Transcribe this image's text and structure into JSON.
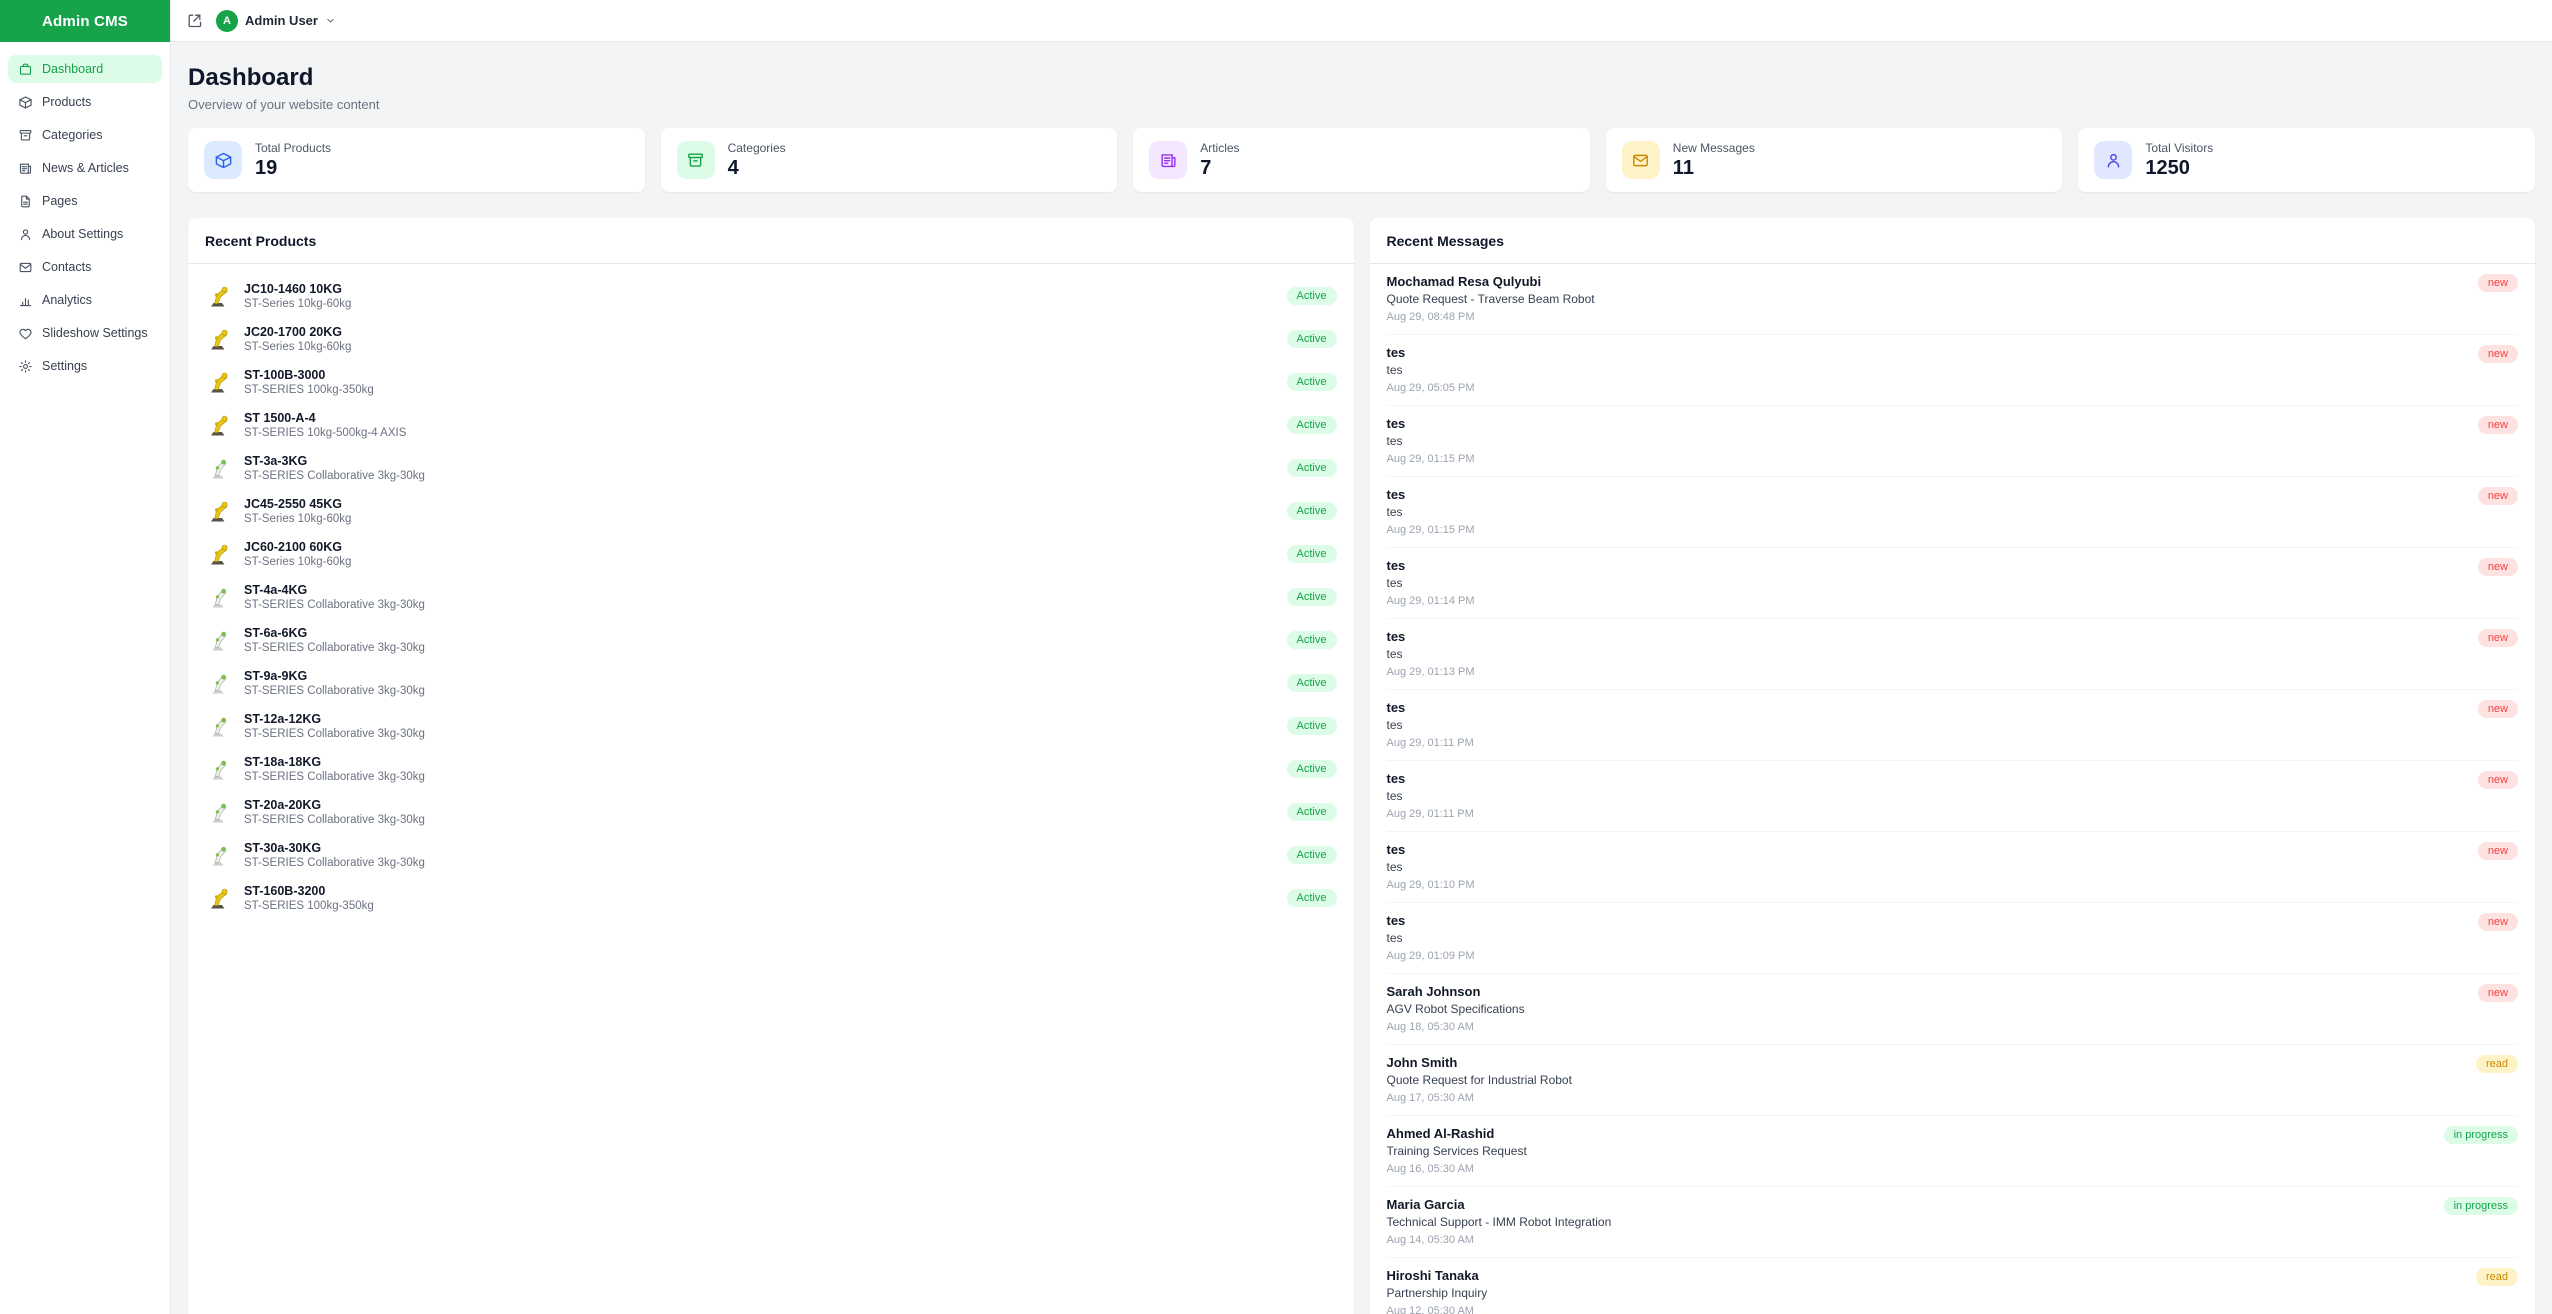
{
  "app": {
    "title": "Admin CMS"
  },
  "topbar": {
    "external_link_icon": "external-link-icon",
    "avatar_initial": "A",
    "user_name": "Admin User",
    "chevron_icon": "chevron-down-icon"
  },
  "sidebar": {
    "items": [
      {
        "label": "Dashboard",
        "icon": "briefcase-icon",
        "active": true
      },
      {
        "label": "Products",
        "icon": "cube-icon",
        "active": false
      },
      {
        "label": "Categories",
        "icon": "archive-icon",
        "active": false
      },
      {
        "label": "News & Articles",
        "icon": "newspaper-icon",
        "active": false
      },
      {
        "label": "Pages",
        "icon": "document-icon",
        "active": false
      },
      {
        "label": "About Settings",
        "icon": "user-icon",
        "active": false
      },
      {
        "label": "Contacts",
        "icon": "mail-icon",
        "active": false
      },
      {
        "label": "Analytics",
        "icon": "chart-icon",
        "active": false
      },
      {
        "label": "Slideshow Settings",
        "icon": "heart-icon",
        "active": false
      },
      {
        "label": "Settings",
        "icon": "gear-icon",
        "active": false
      }
    ]
  },
  "page": {
    "title": "Dashboard",
    "subtitle": "Overview of your website content"
  },
  "stats": {
    "items": [
      {
        "label": "Total Products",
        "value": "19",
        "icon": "cube-icon",
        "icon_color": "#2563eb",
        "icon_bg": "#dbeafe"
      },
      {
        "label": "Categories",
        "value": "4",
        "icon": "archive-icon",
        "icon_color": "#16a34a",
        "icon_bg": "#dcfce7"
      },
      {
        "label": "Articles",
        "value": "7",
        "icon": "newspaper-icon",
        "icon_color": "#9333ea",
        "icon_bg": "#f3e8ff"
      },
      {
        "label": "New Messages",
        "value": "11",
        "icon": "mail-icon",
        "icon_color": "#ca8a04",
        "icon_bg": "#fef3c7"
      },
      {
        "label": "Total Visitors",
        "value": "1250",
        "icon": "user-icon",
        "icon_color": "#4f46e5",
        "icon_bg": "#e0e7ff"
      }
    ]
  },
  "recent_products": {
    "title": "Recent Products",
    "items": [
      {
        "name": "JC10-1460 10KG",
        "series": "ST-Series 10kg-60kg",
        "status": "Active",
        "thumb": "yellow-robot-arm"
      },
      {
        "name": "JC20-1700 20KG",
        "series": "ST-Series 10kg-60kg",
        "status": "Active",
        "thumb": "yellow-robot-arm"
      },
      {
        "name": "ST-100B-3000",
        "series": "ST-SERIES 100kg-350kg",
        "status": "Active",
        "thumb": "yellow-robot-arm"
      },
      {
        "name": "ST 1500-A-4",
        "series": "ST-SERIES 10kg-500kg-4 AXIS",
        "status": "Active",
        "thumb": "yellow-robot-arm"
      },
      {
        "name": "ST-3a-3KG",
        "series": "ST-SERIES Collaborative 3kg-30kg",
        "status": "Active",
        "thumb": "white-robot-arm"
      },
      {
        "name": "JC45-2550 45KG",
        "series": "ST-Series 10kg-60kg",
        "status": "Active",
        "thumb": "yellow-robot-arm"
      },
      {
        "name": "JC60-2100 60KG",
        "series": "ST-Series 10kg-60kg",
        "status": "Active",
        "thumb": "yellow-robot-arm"
      },
      {
        "name": "ST-4a-4KG",
        "series": "ST-SERIES Collaborative 3kg-30kg",
        "status": "Active",
        "thumb": "white-robot-arm"
      },
      {
        "name": "ST-6a-6KG",
        "series": "ST-SERIES Collaborative 3kg-30kg",
        "status": "Active",
        "thumb": "white-robot-arm"
      },
      {
        "name": "ST-9a-9KG",
        "series": "ST-SERIES Collaborative 3kg-30kg",
        "status": "Active",
        "thumb": "white-robot-arm"
      },
      {
        "name": "ST-12a-12KG",
        "series": "ST-SERIES Collaborative 3kg-30kg",
        "status": "Active",
        "thumb": "white-robot-arm"
      },
      {
        "name": "ST-18a-18KG",
        "series": "ST-SERIES Collaborative 3kg-30kg",
        "status": "Active",
        "thumb": "white-robot-arm"
      },
      {
        "name": "ST-20a-20KG",
        "series": "ST-SERIES Collaborative 3kg-30kg",
        "status": "Active",
        "thumb": "white-robot-arm"
      },
      {
        "name": "ST-30a-30KG",
        "series": "ST-SERIES Collaborative 3kg-30kg",
        "status": "Active",
        "thumb": "white-robot-arm"
      },
      {
        "name": "ST-160B-3200",
        "series": "ST-SERIES 100kg-350kg",
        "status": "Active",
        "thumb": "yellow-robot-arm"
      }
    ]
  },
  "recent_messages": {
    "title": "Recent Messages",
    "items": [
      {
        "sender": "Mochamad Resa Qulyubi",
        "subject": "Quote Request - Traverse Beam Robot",
        "date": "Aug 29, 08:48 PM",
        "status": "new"
      },
      {
        "sender": "tes",
        "subject": "tes",
        "date": "Aug 29, 05:05 PM",
        "status": "new"
      },
      {
        "sender": "tes",
        "subject": "tes",
        "date": "Aug 29, 01:15 PM",
        "status": "new"
      },
      {
        "sender": "tes",
        "subject": "tes",
        "date": "Aug 29, 01:15 PM",
        "status": "new"
      },
      {
        "sender": "tes",
        "subject": "tes",
        "date": "Aug 29, 01:14 PM",
        "status": "new"
      },
      {
        "sender": "tes",
        "subject": "tes",
        "date": "Aug 29, 01:13 PM",
        "status": "new"
      },
      {
        "sender": "tes",
        "subject": "tes",
        "date": "Aug 29, 01:11 PM",
        "status": "new"
      },
      {
        "sender": "tes",
        "subject": "tes",
        "date": "Aug 29, 01:11 PM",
        "status": "new"
      },
      {
        "sender": "tes",
        "subject": "tes",
        "date": "Aug 29, 01:10 PM",
        "status": "new"
      },
      {
        "sender": "tes",
        "subject": "tes",
        "date": "Aug 29, 01:09 PM",
        "status": "new"
      },
      {
        "sender": "Sarah Johnson",
        "subject": "AGV Robot Specifications",
        "date": "Aug 18, 05:30 AM",
        "status": "new"
      },
      {
        "sender": "John Smith",
        "subject": "Quote Request for Industrial Robot",
        "date": "Aug 17, 05:30 AM",
        "status": "read"
      },
      {
        "sender": "Ahmed Al-Rashid",
        "subject": "Training Services Request",
        "date": "Aug 16, 05:30 AM",
        "status": "in progress"
      },
      {
        "sender": "Maria Garcia",
        "subject": "Technical Support - IMM Robot Integration",
        "date": "Aug 14, 05:30 AM",
        "status": "in progress"
      },
      {
        "sender": "Hiroshi Tanaka",
        "subject": "Partnership Inquiry",
        "date": "Aug 12, 05:30 AM",
        "status": "read"
      }
    ]
  },
  "colors": {
    "brand_green": "#16a34a",
    "active_badge_bg": "#dcfce7",
    "new_badge_bg": "#fee2e2",
    "new_badge_text": "#ef4444",
    "read_badge_bg": "#fef3c7",
    "read_badge_text": "#ca8a04",
    "page_bg": "#f3f4f6"
  }
}
